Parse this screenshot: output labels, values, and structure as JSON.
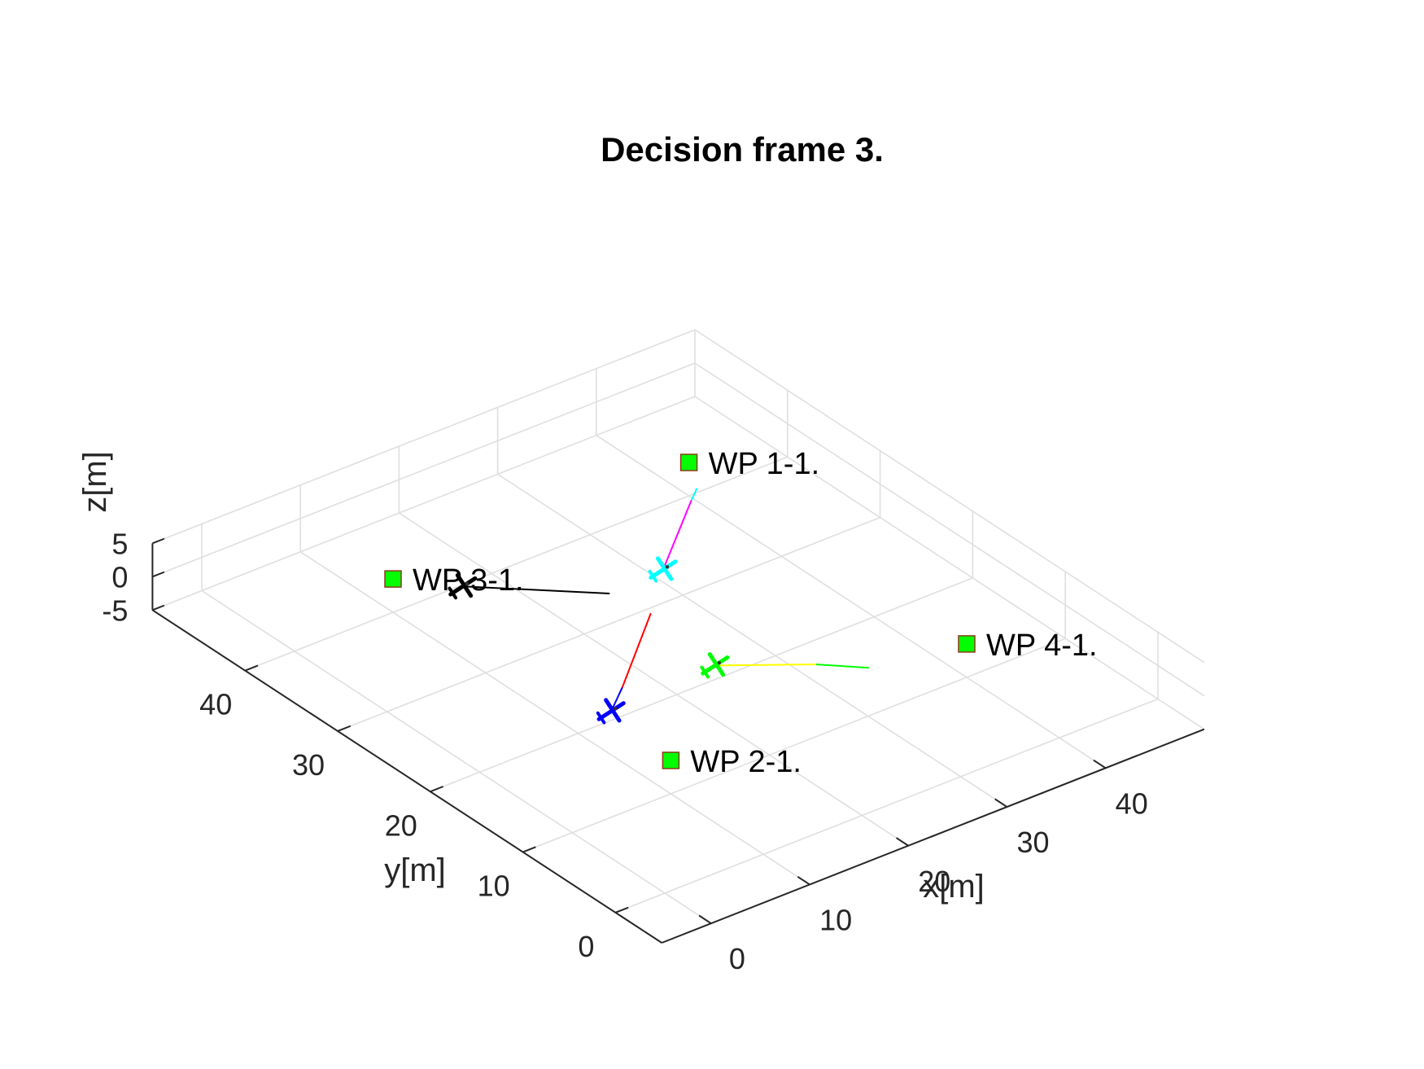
{
  "chart_data": {
    "type": "line3d",
    "title": "Decision frame 3.",
    "xlabel": "x[m]",
    "ylabel": "y[m]",
    "zlabel": "z[m]",
    "xlim": [
      -5,
      50
    ],
    "ylim": [
      -5,
      50
    ],
    "zlim": [
      -5,
      5
    ],
    "x_ticks": [
      0,
      10,
      20,
      30,
      40
    ],
    "y_ticks": [
      0,
      10,
      20,
      30,
      40
    ],
    "z_ticks": [
      -5,
      0,
      5
    ],
    "grid": true,
    "waypoints": [
      {
        "label": "WP 1-1.",
        "x": 40,
        "y": 40,
        "z": 0,
        "color": "#00ff00"
      },
      {
        "label": "WP 2-1.",
        "x": 10,
        "y": 10,
        "z": 0,
        "color": "#00ff00"
      },
      {
        "label": "WP 3-1.",
        "x": 10,
        "y": 40,
        "z": 0,
        "color": "#00ff00"
      },
      {
        "label": "WP 4-1.",
        "x": 40,
        "y": 10,
        "z": 0,
        "color": "#00ff00"
      }
    ],
    "trajectories": [
      {
        "aircraft_color": "#000000",
        "points": [
          [
            13.7,
            36.4,
            0
          ],
          [
            22.3,
            29.7,
            0
          ]
        ],
        "colors": [
          "#000000",
          "#00ff00"
        ]
      },
      {
        "aircraft_color": "#00ffff",
        "points": [
          [
            28.0,
            30.0,
            0
          ],
          [
            36.5,
            36.0,
            0
          ],
          [
            38.0,
            37.0,
            0
          ]
        ],
        "colors": [
          "#ff00ff",
          "#00ffff"
        ]
      },
      {
        "aircraft_color": "#0000ff",
        "points": [
          [
            11.0,
            17.5,
            0
          ],
          [
            14.0,
            19.5,
            0
          ],
          [
            23.0,
            26.0,
            0
          ]
        ],
        "colors": [
          "#0000ff",
          "#ff0000"
        ]
      },
      {
        "aircraft_color": "#00ff00",
        "points": [
          [
            22.0,
            18.0,
            0
          ],
          [
            28.5,
            14.0,
            0
          ],
          [
            31.5,
            11.5,
            0
          ]
        ],
        "colors": [
          "#ffff00",
          "#00ff00"
        ]
      }
    ]
  }
}
